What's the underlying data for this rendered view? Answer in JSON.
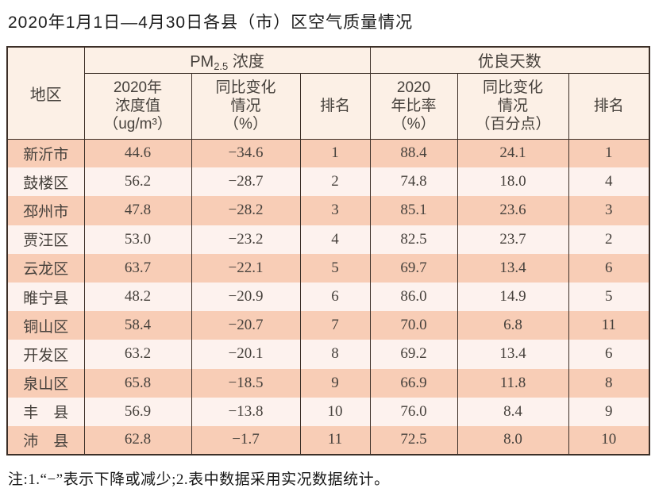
{
  "title": "2020年1月1日—4月30日各县（市）区空气质量情况",
  "note": "注:1.“−”表示下降或减少;2.表中数据采用实况数据统计。",
  "colors": {
    "row_odd": "#f8cdb6",
    "row_even": "#fdf2ee",
    "header_bg": "#fcf0e6",
    "border": "#3c2f27",
    "text": "#46413c"
  },
  "table": {
    "header": {
      "region": "地区",
      "pm25_group": {
        "base": "PM",
        "sub": "2.5",
        "rest": " 浓度"
      },
      "good_days_group": "优良天数",
      "sub_headers": [
        "2020年\n浓度值\n（ug/m³）",
        "同比变化\n情况\n（%）",
        "排名",
        "2020\n年比率\n（%）",
        "同比变化\n情况\n（百分点）",
        "排名"
      ]
    },
    "column_names": [
      "region",
      "pm-value",
      "pm-change",
      "pm-rank",
      "goodday-ratio",
      "goodday-change",
      "goodday-rank"
    ],
    "rows": [
      [
        "新沂市",
        "44.6",
        "−34.6",
        "1",
        "88.4",
        "24.1",
        "1"
      ],
      [
        "鼓楼区",
        "56.2",
        "−28.7",
        "2",
        "74.8",
        "18.0",
        "4"
      ],
      [
        "邳州市",
        "47.8",
        "−28.2",
        "3",
        "85.1",
        "23.6",
        "3"
      ],
      [
        "贾汪区",
        "53.0",
        "−23.2",
        "4",
        "82.5",
        "23.7",
        "2"
      ],
      [
        "云龙区",
        "63.7",
        "−22.1",
        "5",
        "69.7",
        "13.4",
        "6"
      ],
      [
        "睢宁县",
        "48.2",
        "−20.9",
        "6",
        "86.0",
        "14.9",
        "5"
      ],
      [
        "铜山区",
        "58.4",
        "−20.7",
        "7",
        "70.0",
        "6.8",
        "11"
      ],
      [
        "开发区",
        "63.2",
        "−20.1",
        "8",
        "69.2",
        "13.4",
        "6"
      ],
      [
        "泉山区",
        "65.8",
        "−18.5",
        "9",
        "66.9",
        "11.8",
        "8"
      ],
      [
        "丰　县",
        "56.9",
        "−13.8",
        "10",
        "76.0",
        "8.4",
        "9"
      ],
      [
        "沛　县",
        "62.8",
        "−1.7",
        "11",
        "72.5",
        "8.0",
        "10"
      ]
    ]
  }
}
